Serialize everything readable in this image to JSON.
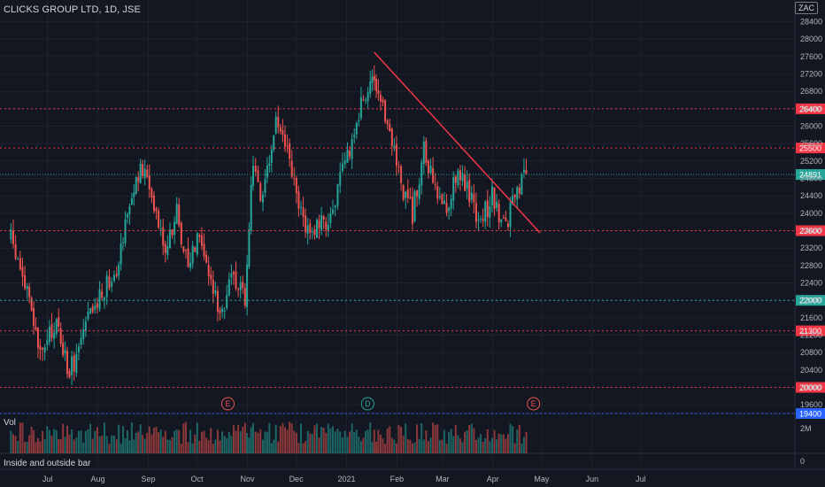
{
  "header": {
    "symbol_line": "CLICKS GROUP LTD, 1D, JSE",
    "currency": "ZAC"
  },
  "volume_pane": {
    "label": "Vol",
    "ticks": [
      {
        "label": "2M",
        "value": 2000000
      },
      {
        "label": "0",
        "value": 0
      }
    ]
  },
  "indicator_pane": {
    "label": "Inside and outside bar"
  },
  "colors": {
    "background": "#131722",
    "up": "#26a69a",
    "down": "#ef5350",
    "trendline": "#f23645",
    "level_red": "#f23645",
    "level_teal": "#26a69a",
    "level_blue": "#2962ff"
  },
  "chart_data": {
    "type": "candlestick",
    "y_axis": {
      "range": [
        19400,
        28900
      ],
      "ticks": [
        19600,
        20000,
        20400,
        20800,
        21200,
        21600,
        22000,
        22400,
        22800,
        23200,
        23600,
        24000,
        24400,
        24800,
        25200,
        25600,
        26000,
        26400,
        26800,
        27200,
        27600,
        28000,
        28400
      ]
    },
    "x_axis": {
      "labels": [
        "Jul",
        "Aug",
        "Sep",
        "Oct",
        "Nov",
        "Dec",
        "2021",
        "Feb",
        "Mar",
        "Apr",
        "May",
        "Jun",
        "Jul"
      ]
    },
    "horizontal_levels": [
      {
        "value": 26400,
        "label": "26400",
        "color": "#f23645"
      },
      {
        "value": 25500,
        "label": "25500",
        "color": "#f23645"
      },
      {
        "value": 23600,
        "label": "23600",
        "color": "#f23645"
      },
      {
        "value": 22000,
        "label": "22000",
        "color": "#26a69a"
      },
      {
        "value": 21300,
        "label": "21300",
        "color": "#f23645"
      },
      {
        "value": 20000,
        "label": "20000",
        "color": "#f23645"
      },
      {
        "value": 19400,
        "label": "19400",
        "color": "#2962ff"
      }
    ],
    "last_price": {
      "value": 24891,
      "label": "24891"
    },
    "trendline": {
      "from": {
        "x": "2021-01-18",
        "y": 27700
      },
      "to": {
        "x": "2021-04-30",
        "y": 23550
      }
    },
    "event_markers": [
      {
        "x": "2020-10-20",
        "label": "E",
        "color": "#ef5350"
      },
      {
        "x": "2021-01-14",
        "label": "D",
        "color": "#26a69a"
      },
      {
        "x": "2021-04-26",
        "label": "E",
        "color": "#ef5350"
      }
    ],
    "price_path": [
      [
        "2020-06-08",
        23400
      ],
      [
        "2020-06-18",
        22200
      ],
      [
        "2020-06-26",
        20700
      ],
      [
        "2020-07-06",
        21500
      ],
      [
        "2020-07-14",
        20300
      ],
      [
        "2020-07-24",
        21400
      ],
      [
        "2020-08-03",
        22200
      ],
      [
        "2020-08-12",
        22800
      ],
      [
        "2020-08-20",
        24300
      ],
      [
        "2020-08-28",
        25000
      ],
      [
        "2020-09-04",
        24300
      ],
      [
        "2020-09-11",
        23200
      ],
      [
        "2020-09-18",
        24000
      ],
      [
        "2020-09-25",
        22800
      ],
      [
        "2020-10-02",
        23700
      ],
      [
        "2020-10-09",
        22300
      ],
      [
        "2020-10-16",
        21800
      ],
      [
        "2020-10-23",
        22600
      ],
      [
        "2020-10-30",
        22100
      ],
      [
        "2020-11-04",
        25300
      ],
      [
        "2020-11-10",
        24200
      ],
      [
        "2020-11-18",
        26200
      ],
      [
        "2020-11-25",
        25400
      ],
      [
        "2020-12-02",
        24100
      ],
      [
        "2020-12-09",
        23600
      ],
      [
        "2020-12-16",
        23700
      ],
      [
        "2020-12-23",
        24100
      ],
      [
        "2021-01-01",
        25300
      ],
      [
        "2021-01-08",
        26300
      ],
      [
        "2021-01-15",
        27100
      ],
      [
        "2021-01-20",
        26500
      ],
      [
        "2021-01-27",
        26000
      ],
      [
        "2021-02-03",
        24700
      ],
      [
        "2021-02-10",
        24000
      ],
      [
        "2021-02-17",
        25400
      ],
      [
        "2021-02-24",
        24500
      ],
      [
        "2021-03-03",
        24100
      ],
      [
        "2021-03-10",
        25100
      ],
      [
        "2021-03-17",
        24400
      ],
      [
        "2021-03-24",
        23800
      ],
      [
        "2021-03-31",
        24400
      ],
      [
        "2021-04-07",
        23700
      ],
      [
        "2021-04-14",
        24300
      ],
      [
        "2021-04-21",
        24891
      ]
    ]
  }
}
